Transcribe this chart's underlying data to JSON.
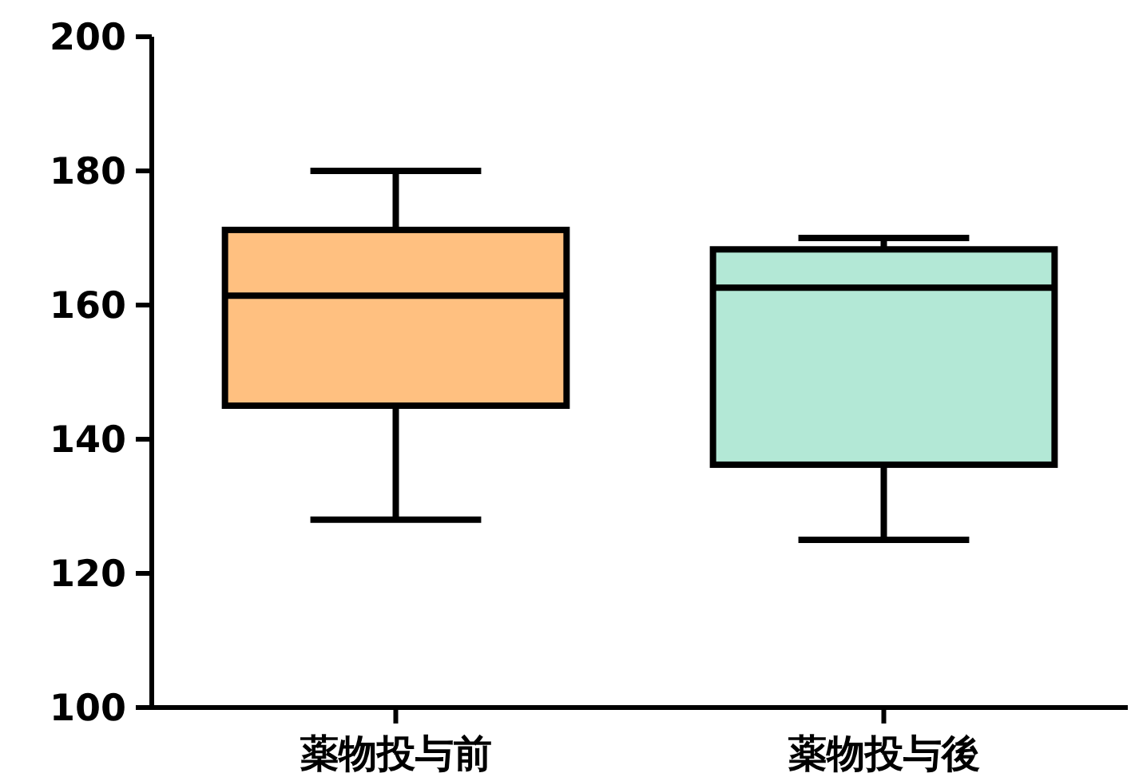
{
  "chart_data": {
    "type": "box",
    "categories": [
      "薬物投与前",
      "薬物投与後"
    ],
    "boxes": [
      {
        "low": 128,
        "q1": 145,
        "median": 161.4,
        "q3": 171.2,
        "high": 180
      },
      {
        "low": 125,
        "q1": 136.2,
        "median": 162.6,
        "q3": 168.3,
        "high": 170
      }
    ],
    "colors": [
      "#ffc080",
      "#b3e8d6"
    ],
    "ylim": [
      100,
      200
    ],
    "yticks": [
      100,
      120,
      140,
      160,
      180,
      200
    ]
  }
}
